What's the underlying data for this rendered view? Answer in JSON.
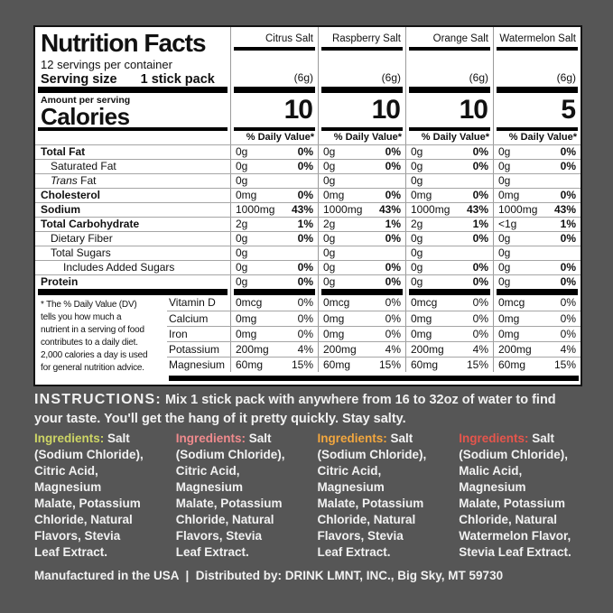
{
  "label": {
    "title": "Nutrition Facts",
    "servings_per_container": "12 servings per container",
    "serving_size_label": "Serving size",
    "serving_size_value": "1 stick pack",
    "amount_per_serving": "Amount per serving",
    "calories_label": "Calories",
    "daily_value_header": "% Daily Value*",
    "columns": [
      {
        "name": "Citrus Salt",
        "serving_grams": "(6g)",
        "calories": "10"
      },
      {
        "name": "Raspberry Salt",
        "serving_grams": "(6g)",
        "calories": "10"
      },
      {
        "name": "Orange Salt",
        "serving_grams": "(6g)",
        "calories": "10"
      },
      {
        "name": "Watermelon Salt",
        "serving_grams": "(6g)",
        "calories": "5"
      }
    ],
    "nutrients": [
      {
        "name": "Total Fat",
        "style": "bold",
        "values": [
          [
            "0g",
            "0%"
          ],
          [
            "0g",
            "0%"
          ],
          [
            "0g",
            "0%"
          ],
          [
            "0g",
            "0%"
          ]
        ]
      },
      {
        "name": "Saturated Fat",
        "style": "sub",
        "values": [
          [
            "0g",
            "0%"
          ],
          [
            "0g",
            "0%"
          ],
          [
            "0g",
            "0%"
          ],
          [
            "0g",
            "0%"
          ]
        ]
      },
      {
        "name": "Trans Fat",
        "style": "sub-italic",
        "values": [
          [
            "0g",
            ""
          ],
          [
            "0g",
            ""
          ],
          [
            "0g",
            ""
          ],
          [
            "0g",
            ""
          ]
        ]
      },
      {
        "name": "Cholesterol",
        "style": "bold",
        "values": [
          [
            "0mg",
            "0%"
          ],
          [
            "0mg",
            "0%"
          ],
          [
            "0mg",
            "0%"
          ],
          [
            "0mg",
            "0%"
          ]
        ]
      },
      {
        "name": "Sodium",
        "style": "bold",
        "values": [
          [
            "1000mg",
            "43%"
          ],
          [
            "1000mg",
            "43%"
          ],
          [
            "1000mg",
            "43%"
          ],
          [
            "1000mg",
            "43%"
          ]
        ]
      },
      {
        "name": "Total Carbohydrate",
        "style": "bold",
        "values": [
          [
            "2g",
            "1%"
          ],
          [
            "2g",
            "1%"
          ],
          [
            "2g",
            "1%"
          ],
          [
            "<1g",
            "1%"
          ]
        ]
      },
      {
        "name": "Dietary Fiber",
        "style": "sub",
        "values": [
          [
            "0g",
            "0%"
          ],
          [
            "0g",
            "0%"
          ],
          [
            "0g",
            "0%"
          ],
          [
            "0g",
            "0%"
          ]
        ]
      },
      {
        "name": "Total Sugars",
        "style": "sub",
        "values": [
          [
            "0g",
            ""
          ],
          [
            "0g",
            ""
          ],
          [
            "0g",
            ""
          ],
          [
            "0g",
            ""
          ]
        ]
      },
      {
        "name": "Includes Added Sugars",
        "style": "subsub",
        "values": [
          [
            "0g",
            "0%"
          ],
          [
            "0g",
            "0%"
          ],
          [
            "0g",
            "0%"
          ],
          [
            "0g",
            "0%"
          ]
        ]
      },
      {
        "name": "Protein",
        "style": "bold",
        "values": [
          [
            "0g",
            "0%"
          ],
          [
            "0g",
            "0%"
          ],
          [
            "0g",
            "0%"
          ],
          [
            "0g",
            "0%"
          ]
        ]
      }
    ],
    "vitamins": [
      {
        "name": "Vitamin D",
        "values": [
          [
            "0mcg",
            "0%"
          ],
          [
            "0mcg",
            "0%"
          ],
          [
            "0mcg",
            "0%"
          ],
          [
            "0mcg",
            "0%"
          ]
        ]
      },
      {
        "name": "Calcium",
        "values": [
          [
            "0mg",
            "0%"
          ],
          [
            "0mg",
            "0%"
          ],
          [
            "0mg",
            "0%"
          ],
          [
            "0mg",
            "0%"
          ]
        ]
      },
      {
        "name": "Iron",
        "values": [
          [
            "0mg",
            "0%"
          ],
          [
            "0mg",
            "0%"
          ],
          [
            "0mg",
            "0%"
          ],
          [
            "0mg",
            "0%"
          ]
        ]
      },
      {
        "name": "Potassium",
        "values": [
          [
            "200mg",
            "4%"
          ],
          [
            "200mg",
            "4%"
          ],
          [
            "200mg",
            "4%"
          ],
          [
            "200mg",
            "4%"
          ]
        ]
      },
      {
        "name": "Magnesium",
        "values": [
          [
            "60mg",
            "15%"
          ],
          [
            "60mg",
            "15%"
          ],
          [
            "60mg",
            "15%"
          ],
          [
            "60mg",
            "15%"
          ]
        ]
      }
    ],
    "footnote": "* The % Daily Value (DV)\ntells you how much a\nnutrient in a serving of food\ncontributes to a daily diet.\n2,000 calories a day is used\nfor general nutrition advice."
  },
  "instructions": {
    "label": "INSTRUCTIONS:",
    "text": "Mix 1 stick pack with anywhere from 16 to 32oz of water to find your taste. You'll get the hang of it pretty quickly. Stay salty."
  },
  "ingredients": [
    {
      "flavor": "Citrus Salt",
      "label": "Ingredients:",
      "label_color": "#cdd565",
      "text": "Salt\n(Sodium Chloride),\nCitric Acid,\nMagnesium\nMalate, Potassium\nChloride, Natural\nFlavors, Stevia\nLeaf Extract."
    },
    {
      "flavor": "Raspberry Salt",
      "label": "Ingredients:",
      "label_color": "#ef8a8d",
      "text": "Salt\n(Sodium Chloride),\nCitric Acid,\nMagnesium\nMalate, Potassium\nChloride, Natural\nFlavors, Stevia\nLeaf Extract."
    },
    {
      "flavor": "Orange Salt",
      "label": "Ingredients:",
      "label_color": "#f3a73e",
      "text": "Salt\n(Sodium Chloride),\nCitric Acid,\nMagnesium\nMalate, Potassium\nChloride, Natural\nFlavors, Stevia\nLeaf Extract."
    },
    {
      "flavor": "Watermelon Salt",
      "label": "Ingredients:",
      "label_color": "#e6554c",
      "text": "Salt\n(Sodium Chloride),\nMalic Acid,\nMagnesium\nMalate, Potassium\nChloride, Natural\nWatermelon Flavor,\nStevia Leaf Extract."
    }
  ],
  "footer": {
    "text": "Manufactured in the USA  |  Distributed by: DRINK LMNT, INC., Big Sky, MT 59730"
  }
}
